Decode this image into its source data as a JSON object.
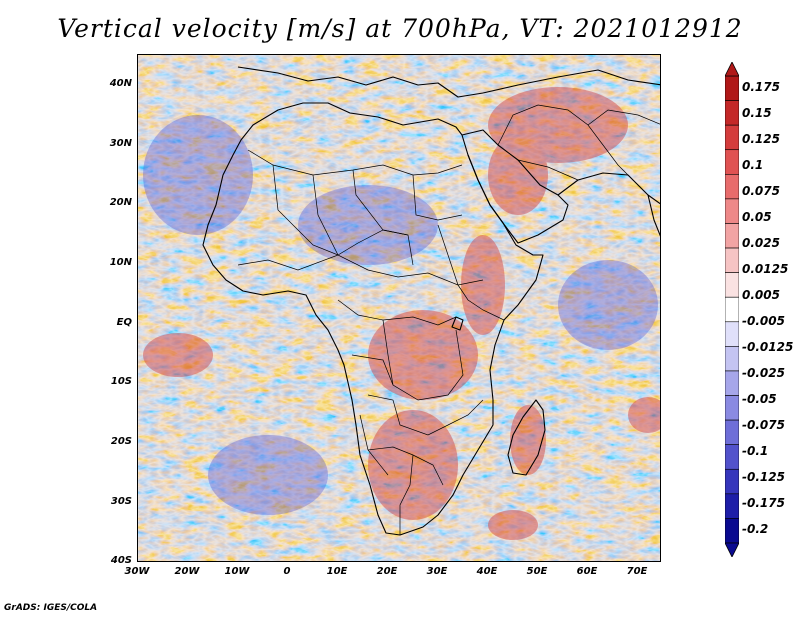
{
  "title": "Vertical velocity [m/s] at 700hPa, VT: 2021012912",
  "credit": "GrADS: IGES/COLA",
  "map": {
    "region": "Africa",
    "lon_range": [
      -30,
      75
    ],
    "lat_range": [
      -40,
      45
    ],
    "lat_ticks": [
      "40N",
      "30N",
      "20N",
      "10N",
      "EQ",
      "10S",
      "20S",
      "30S",
      "40S"
    ],
    "lon_ticks": [
      "30W",
      "20W",
      "10W",
      "0",
      "10E",
      "20E",
      "30E",
      "40E",
      "50E",
      "60E",
      "70E"
    ]
  },
  "colorbar": {
    "levels": [
      "0.175",
      "0.15",
      "0.125",
      "0.1",
      "0.075",
      "0.05",
      "0.025",
      "0.0125",
      "0.005",
      "-0.005",
      "-0.0125",
      "-0.025",
      "-0.05",
      "-0.075",
      "-0.1",
      "-0.125",
      "-0.175",
      "-0.2"
    ],
    "colors": [
      "#b01818",
      "#c42828",
      "#d43c3c",
      "#e05252",
      "#e86c6c",
      "#ee8888",
      "#f2a4a4",
      "#f6c4c4",
      "#fae2e2",
      "#ffffff",
      "#e0e0fa",
      "#c4c4f2",
      "#a6a6ea",
      "#8a8ae2",
      "#6e6ed8",
      "#5252cc",
      "#3636bc",
      "#1e1ea8",
      "#0a0a90"
    ]
  },
  "colors": {
    "positive": "#d43c3c",
    "negative": "#5a5ad8",
    "coastline": "#000000",
    "background": "#ffffff"
  }
}
